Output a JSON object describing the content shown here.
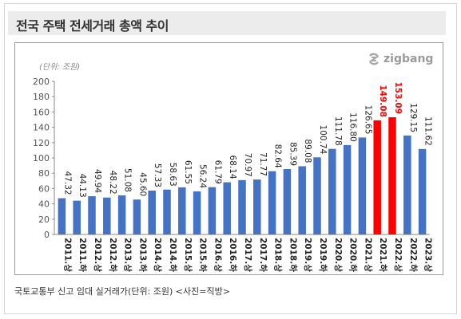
{
  "header": {
    "title": "전국 주택 전세거래 총액 추이"
  },
  "logo": {
    "text": "zigbang"
  },
  "caption": "국토교통부 신고 임대 실거래가(단위: 조원) <사진=직방>",
  "colors": {
    "bar": "#4472c4",
    "highlight": "#ff0000",
    "label": "#222222",
    "highlight_label": "#ff0000"
  },
  "chart_data": {
    "type": "bar",
    "title": "전국 주택 전세거래 총액 추이",
    "unit_label": "(단위: 조원)",
    "ylim": [
      0,
      200
    ],
    "yticks": [
      0,
      20,
      40,
      60,
      80,
      100,
      120,
      140,
      160,
      180,
      200
    ],
    "grid": false,
    "categories": [
      "2011.상",
      "2011.하",
      "2012.상",
      "2012.하",
      "2013.상",
      "2013.하",
      "2014.상",
      "2014.하",
      "2015.상",
      "2015.하",
      "2016.상",
      "2016.하",
      "2017.상",
      "2017.하",
      "2018.상",
      "2018.하",
      "2019.상",
      "2019.하",
      "2020.상",
      "2020.하",
      "2021.상",
      "2021.하",
      "2022.상",
      "2022.하",
      "2023.상"
    ],
    "values": [
      47.32,
      44.13,
      49.94,
      48.22,
      51.08,
      45.6,
      57.33,
      58.63,
      61.55,
      56.24,
      61.79,
      68.14,
      70.97,
      71.77,
      82.64,
      85.39,
      89.08,
      100.74,
      111.78,
      116.8,
      126.65,
      149.08,
      153.09,
      129.15,
      111.62
    ],
    "value_labels": [
      "47.32",
      "44.13",
      "49.94",
      "48.22",
      "51.08",
      "45.60",
      "57.33",
      "58.63",
      "61.55",
      "56.24",
      "61.79",
      "68.14",
      "70.97",
      "71.77",
      "82.64",
      "85.39",
      "89.08",
      "100.74",
      "111.78",
      "116.80",
      "126.65",
      "149.08",
      "153.09",
      "129.15",
      "111.62"
    ],
    "highlighted": [
      "2021.하",
      "2022.상"
    ]
  }
}
